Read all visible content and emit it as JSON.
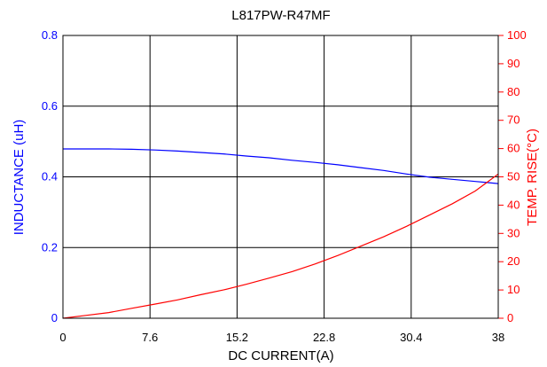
{
  "chart_data": {
    "type": "line",
    "title": "L817PW-R47MF",
    "xlabel": "DC CURRENT(A)",
    "ylabel_left": "INDUCTANCE (uH)",
    "ylabel_right": "TEMP. RISE(°C)",
    "xlim": [
      0,
      38
    ],
    "ylim_left": [
      0,
      0.8
    ],
    "ylim_right": [
      0,
      100
    ],
    "x_ticks": [
      "0",
      "7.6",
      "15.2",
      "22.8",
      "30.4",
      "38"
    ],
    "y_left_ticks": [
      "0",
      "0.2",
      "0.4",
      "0.6",
      "0.8"
    ],
    "y_right_ticks": [
      "0",
      "10",
      "20",
      "30",
      "40",
      "50",
      "60",
      "70",
      "80",
      "90",
      "100"
    ],
    "grid": true,
    "colors": {
      "inductance": "#0000ff",
      "temp_rise": "#ff0000",
      "frame": "#000000"
    },
    "series": [
      {
        "axis": "left",
        "x": [
          0,
          2,
          4,
          6,
          8,
          10,
          12,
          14,
          16,
          18,
          20,
          22,
          24,
          26,
          28,
          30,
          32,
          34,
          36,
          37,
          38
        ],
        "values": [
          0.479,
          0.479,
          0.479,
          0.478,
          0.476,
          0.473,
          0.469,
          0.465,
          0.459,
          0.454,
          0.447,
          0.441,
          0.434,
          0.426,
          0.418,
          0.408,
          0.399,
          0.393,
          0.387,
          0.384,
          0.381
        ]
      },
      {
        "axis": "right",
        "x": [
          0,
          2,
          4,
          6,
          8,
          10,
          12,
          14,
          16,
          18,
          20,
          22,
          24,
          26,
          28,
          30,
          32,
          34,
          36,
          37,
          38
        ],
        "values": [
          0,
          1,
          2,
          3.5,
          5,
          6.5,
          8.3,
          10,
          12,
          14.2,
          16.5,
          19.2,
          22.2,
          25.5,
          28.8,
          32.5,
          36.5,
          40.5,
          45,
          48,
          51
        ]
      }
    ]
  }
}
